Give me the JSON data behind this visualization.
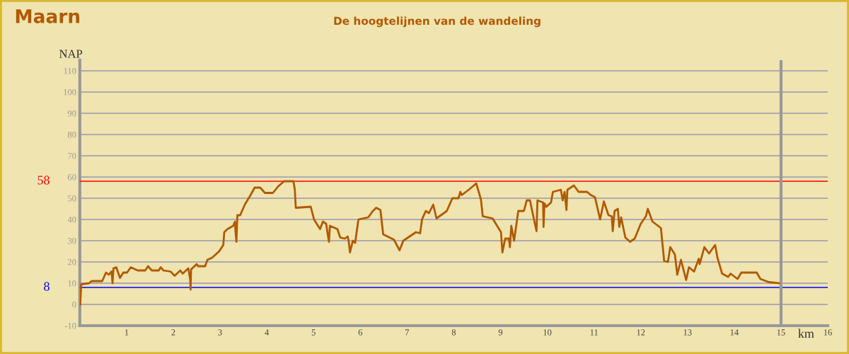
{
  "chart_data": {
    "type": "line",
    "title": "Maarn",
    "subtitle": "De hoogtelijnen van de wandeling",
    "xlabel": "km",
    "ylabel": "NAP",
    "series": [
      {
        "color": "#b05a00",
        "x": [
          0.01,
          0.03,
          0.2,
          0.25,
          0.48,
          0.56,
          0.62,
          0.68,
          0.7,
          0.72,
          0.78,
          0.86,
          0.93,
          1.01,
          1.09,
          1.24,
          1.4,
          1.46,
          1.54,
          1.69,
          1.73,
          1.79,
          1.94,
          2.03,
          2.15,
          2.2,
          2.32,
          2.36,
          2.37,
          2.38,
          2.5,
          2.53,
          2.68,
          2.73,
          2.83,
          2.98,
          3.07,
          3.09,
          3.16,
          3.28,
          3.32,
          3.33,
          3.35,
          3.37,
          3.43,
          3.53,
          3.64,
          3.74,
          3.86,
          3.96,
          4.13,
          4.24,
          4.37,
          4.57,
          4.6,
          4.62,
          4.94,
          5.01,
          5.14,
          5.2,
          5.27,
          5.3,
          5.33,
          5.35,
          5.51,
          5.57,
          5.67,
          5.73,
          5.75,
          5.78,
          5.84,
          5.89,
          5.96,
          6.17,
          6.27,
          6.34,
          6.43,
          6.49,
          6.72,
          6.84,
          6.92,
          7.19,
          7.28,
          7.32,
          7.4,
          7.47,
          7.56,
          7.63,
          7.85,
          7.97,
          8.1,
          8.14,
          8.17,
          8.32,
          8.48,
          8.58,
          8.62,
          8.83,
          9.01,
          9.04,
          9.1,
          9.18,
          9.2,
          9.23,
          9.29,
          9.38,
          9.5,
          9.56,
          9.63,
          9.71,
          9.77,
          9.79,
          9.91,
          9.92,
          9.94,
          9.98,
          10.08,
          10.12,
          10.29,
          10.33,
          10.37,
          10.41,
          10.43,
          10.57,
          10.67,
          10.85,
          10.93,
          11.02,
          11.13,
          11.21,
          11.31,
          11.38,
          11.4,
          11.44,
          11.51,
          11.54,
          11.58,
          11.67,
          11.77,
          11.87,
          12.0,
          12.11,
          12.15,
          12.25,
          12.43,
          12.5,
          12.58,
          12.63,
          12.73,
          12.78,
          12.86,
          12.97,
          13.03,
          13.14,
          13.24,
          13.26,
          13.36,
          13.46,
          13.59,
          13.64,
          13.74,
          13.87,
          13.92,
          14.07,
          14.15,
          14.48,
          14.56,
          14.74,
          14.96
        ],
        "values": [
          0,
          9.5,
          10,
          11,
          11,
          15,
          14,
          15.5,
          10,
          17,
          17.5,
          12.5,
          15,
          15,
          17.5,
          16,
          16,
          18,
          16,
          16,
          17.5,
          16,
          15.5,
          13.5,
          16,
          14.5,
          17,
          12,
          7,
          16.5,
          19,
          18,
          18,
          21,
          22,
          25,
          28,
          34,
          35.5,
          37,
          39,
          34.5,
          29.5,
          42,
          42,
          47,
          51,
          55,
          55,
          52.5,
          52.5,
          55.5,
          58,
          58,
          54,
          45.5,
          46,
          40,
          35.5,
          39,
          38,
          33.5,
          29.5,
          37,
          35.5,
          31.5,
          31,
          32,
          30,
          24.5,
          30,
          29,
          40,
          41,
          44,
          45.5,
          44.5,
          33,
          30.5,
          25.5,
          30,
          34,
          33.5,
          40,
          44,
          43,
          47,
          40.5,
          44,
          50,
          50,
          53,
          51.5,
          54,
          57,
          49.5,
          41.5,
          40.5,
          34,
          24.5,
          31,
          31,
          27,
          37,
          30,
          44,
          44,
          49,
          49,
          40.5,
          34.5,
          49,
          48,
          36.5,
          47.5,
          46,
          48,
          53,
          54,
          49,
          53,
          44.5,
          54,
          56,
          53,
          53,
          51.5,
          50.5,
          40,
          48.5,
          42,
          41.5,
          34.5,
          44,
          45,
          36.5,
          41,
          31.5,
          29.5,
          31,
          38,
          41.5,
          45,
          39,
          36,
          20.5,
          20,
          27,
          23.5,
          14,
          21,
          11.5,
          17.5,
          15.5,
          21.5,
          19,
          27,
          24,
          28,
          22,
          14.5,
          13,
          14.5,
          12,
          15,
          15,
          12,
          10.5,
          10
        ]
      }
    ],
    "xlim": [
      0,
      16
    ],
    "xticks": [
      1,
      2,
      3,
      4,
      5,
      6,
      7,
      8,
      9,
      10,
      11,
      12,
      13,
      14,
      15,
      16
    ],
    "ylim": [
      -10,
      115
    ],
    "yticks": [
      -10,
      0,
      10,
      20,
      30,
      40,
      50,
      60,
      70,
      80,
      90,
      100,
      110
    ],
    "grid": "y",
    "marker": "none",
    "line_style": "solid",
    "ref_lines": [
      {
        "axis": "y",
        "value": 58,
        "label": "58",
        "color": "#ff0000"
      },
      {
        "axis": "y",
        "value": 8,
        "label": "8",
        "color": "#0000ff"
      },
      {
        "axis": "x",
        "value": 15,
        "label": null,
        "color": "#999999"
      }
    ]
  }
}
